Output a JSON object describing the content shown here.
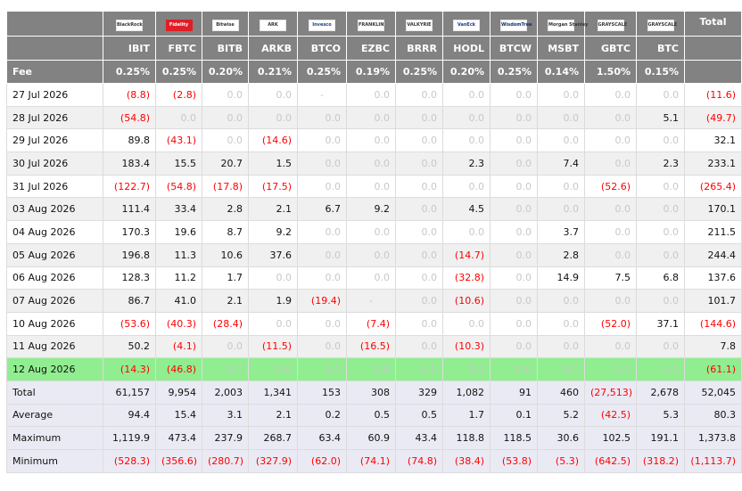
{
  "header": {
    "total_label": "Total",
    "fee_label": "Fee",
    "columns": [
      {
        "ticker": "IBIT",
        "fee": "0.25%",
        "logo": "blackrock-logo",
        "logo_text": "BlackRock"
      },
      {
        "ticker": "FBTC",
        "fee": "0.25%",
        "logo": "fidelity-logo",
        "logo_text": "Fidelity"
      },
      {
        "ticker": "BITB",
        "fee": "0.20%",
        "logo": "bitwise-logo",
        "logo_text": "Bitwise"
      },
      {
        "ticker": "ARKB",
        "fee": "0.21%",
        "logo": "ark-logo",
        "logo_text": "ARK"
      },
      {
        "ticker": "BTCO",
        "fee": "0.25%",
        "logo": "invesco-logo",
        "logo_text": "Invesco"
      },
      {
        "ticker": "EZBC",
        "fee": "0.19%",
        "logo": "franklin-logo",
        "logo_text": "FRANKLIN"
      },
      {
        "ticker": "BRRR",
        "fee": "0.25%",
        "logo": "valkyrie-logo",
        "logo_text": "VALKYRIE"
      },
      {
        "ticker": "HODL",
        "fee": "0.20%",
        "logo": "vaneck-logo",
        "logo_text": "VanEck"
      },
      {
        "ticker": "BTCW",
        "fee": "0.25%",
        "logo": "wisdomtree-logo",
        "logo_text": "WisdomTree"
      },
      {
        "ticker": "MSBT",
        "fee": "0.14%",
        "logo": "morgan-stanley-logo",
        "logo_text": "Morgan Stanley"
      },
      {
        "ticker": "GBTC",
        "fee": "1.50%",
        "logo": "grayscale-logo",
        "logo_text": "GRAYSCALE"
      },
      {
        "ticker": "BTC",
        "fee": "0.15%",
        "logo": "grayscale-mini-logo",
        "logo_text": "GRAYSCALE"
      }
    ],
    "total_fee": ""
  },
  "rows": [
    {
      "date": "27 Jul 2026",
      "values": [
        "(8.8)",
        "(2.8)",
        "0.0",
        "0.0",
        "-",
        "0.0",
        "0.0",
        "0.0",
        "0.0",
        "0.0",
        "0.0",
        "0.0"
      ],
      "total": "(11.6)"
    },
    {
      "date": "28 Jul 2026",
      "values": [
        "(54.8)",
        "0.0",
        "0.0",
        "0.0",
        "0.0",
        "0.0",
        "0.0",
        "0.0",
        "0.0",
        "0.0",
        "0.0",
        "5.1"
      ],
      "total": "(49.7)"
    },
    {
      "date": "29 Jul 2026",
      "values": [
        "89.8",
        "(43.1)",
        "0.0",
        "(14.6)",
        "0.0",
        "0.0",
        "0.0",
        "0.0",
        "0.0",
        "0.0",
        "0.0",
        "0.0"
      ],
      "total": "32.1"
    },
    {
      "date": "30 Jul 2026",
      "values": [
        "183.4",
        "15.5",
        "20.7",
        "1.5",
        "0.0",
        "0.0",
        "0.0",
        "2.3",
        "0.0",
        "7.4",
        "0.0",
        "2.3"
      ],
      "total": "233.1"
    },
    {
      "date": "31 Jul 2026",
      "values": [
        "(122.7)",
        "(54.8)",
        "(17.8)",
        "(17.5)",
        "0.0",
        "0.0",
        "0.0",
        "0.0",
        "0.0",
        "0.0",
        "(52.6)",
        "0.0"
      ],
      "total": "(265.4)"
    },
    {
      "date": "03 Aug 2026",
      "values": [
        "111.4",
        "33.4",
        "2.8",
        "2.1",
        "6.7",
        "9.2",
        "0.0",
        "4.5",
        "0.0",
        "0.0",
        "0.0",
        "0.0"
      ],
      "total": "170.1"
    },
    {
      "date": "04 Aug 2026",
      "values": [
        "170.3",
        "19.6",
        "8.7",
        "9.2",
        "0.0",
        "0.0",
        "0.0",
        "0.0",
        "0.0",
        "3.7",
        "0.0",
        "0.0"
      ],
      "total": "211.5"
    },
    {
      "date": "05 Aug 2026",
      "values": [
        "196.8",
        "11.3",
        "10.6",
        "37.6",
        "0.0",
        "0.0",
        "0.0",
        "(14.7)",
        "0.0",
        "2.8",
        "0.0",
        "0.0"
      ],
      "total": "244.4"
    },
    {
      "date": "06 Aug 2026",
      "values": [
        "128.3",
        "11.2",
        "1.7",
        "0.0",
        "0.0",
        "0.0",
        "0.0",
        "(32.8)",
        "0.0",
        "14.9",
        "7.5",
        "6.8"
      ],
      "total": "137.6"
    },
    {
      "date": "07 Aug 2026",
      "values": [
        "86.7",
        "41.0",
        "2.1",
        "1.9",
        "(19.4)",
        "-",
        "0.0",
        "(10.6)",
        "0.0",
        "0.0",
        "0.0",
        "0.0"
      ],
      "total": "101.7"
    },
    {
      "date": "10 Aug 2026",
      "values": [
        "(53.6)",
        "(40.3)",
        "(28.4)",
        "0.0",
        "0.0",
        "(7.4)",
        "0.0",
        "0.0",
        "0.0",
        "0.0",
        "(52.0)",
        "37.1"
      ],
      "total": "(144.6)"
    },
    {
      "date": "11 Aug 2026",
      "values": [
        "50.2",
        "(4.1)",
        "0.0",
        "(11.5)",
        "0.0",
        "(16.5)",
        "0.0",
        "(10.3)",
        "0.0",
        "0.0",
        "0.0",
        "0.0"
      ],
      "total": "7.8"
    },
    {
      "date": "12 Aug 2026",
      "values": [
        "(14.3)",
        "(46.8)",
        "0.0",
        "0.0",
        "0.0",
        "0.0",
        "0.0",
        "0.0",
        "0.0",
        "0.0",
        "0.0",
        "0.0"
      ],
      "total": "(61.1)",
      "highlight": true
    }
  ],
  "summary": [
    {
      "label": "Total",
      "values": [
        "61,157",
        "9,954",
        "2,003",
        "1,341",
        "153",
        "308",
        "329",
        "1,082",
        "91",
        "460",
        "(27,513)",
        "2,678"
      ],
      "total": "52,045"
    },
    {
      "label": "Average",
      "values": [
        "94.4",
        "15.4",
        "3.1",
        "2.1",
        "0.2",
        "0.5",
        "0.5",
        "1.7",
        "0.1",
        "5.2",
        "(42.5)",
        "5.3"
      ],
      "total": "80.3"
    },
    {
      "label": "Maximum",
      "values": [
        "1,119.9",
        "473.4",
        "237.9",
        "268.7",
        "63.4",
        "60.9",
        "43.4",
        "118.8",
        "118.5",
        "30.6",
        "102.5",
        "191.1"
      ],
      "total": "1,373.8"
    },
    {
      "label": "Minimum",
      "values": [
        "(528.3)",
        "(356.6)",
        "(280.7)",
        "(327.9)",
        "(62.0)",
        "(74.1)",
        "(74.8)",
        "(38.4)",
        "(53.8)",
        "(5.3)",
        "(642.5)",
        "(318.2)"
      ],
      "total": "(1,113.7)"
    }
  ],
  "colors": {
    "header_bg": "#828282",
    "negative": "#ff0000",
    "zero": "#c8c8c8",
    "highlight": "#90ee90",
    "summary_bg": "#eaeaf4",
    "alt_row": "#f0f0f0"
  }
}
